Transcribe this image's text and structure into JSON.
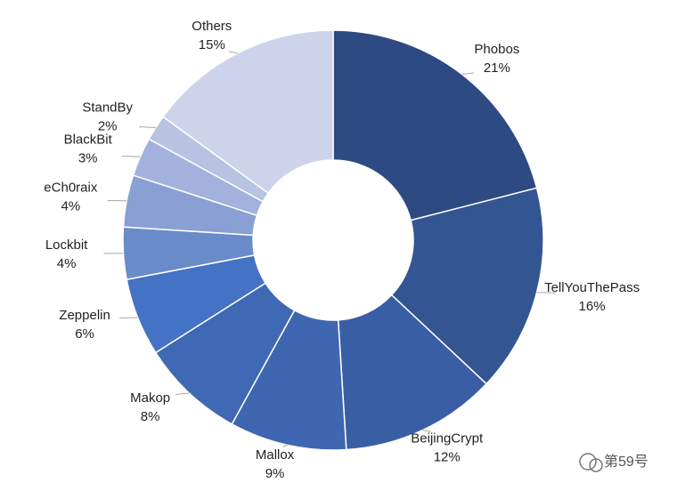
{
  "chart_data": {
    "type": "donut",
    "categories": [
      "Phobos",
      "TellYouThePass",
      "BeijingCrypt",
      "Mallox",
      "Makop",
      "Zeppelin",
      "Lockbit",
      "eCh0raix",
      "BlackBit",
      "StandBy",
      "Others"
    ],
    "values": [
      21,
      16,
      12,
      9,
      8,
      6,
      4,
      4,
      3,
      2,
      15
    ],
    "value_labels": [
      "21%",
      "16%",
      "12%",
      "9%",
      "8%",
      "6%",
      "4%",
      "4%",
      "3%",
      "2%",
      "15%"
    ],
    "colors": [
      "#2e4a82",
      "#335592",
      "#3a5ea3",
      "#3f66b0",
      "#4069b5",
      "#4472c4",
      "#6a8bc9",
      "#8a9fd3",
      "#a3b2dc",
      "#b8c3e2",
      "#cdd3ea"
    ]
  },
  "watermark": "第59号"
}
